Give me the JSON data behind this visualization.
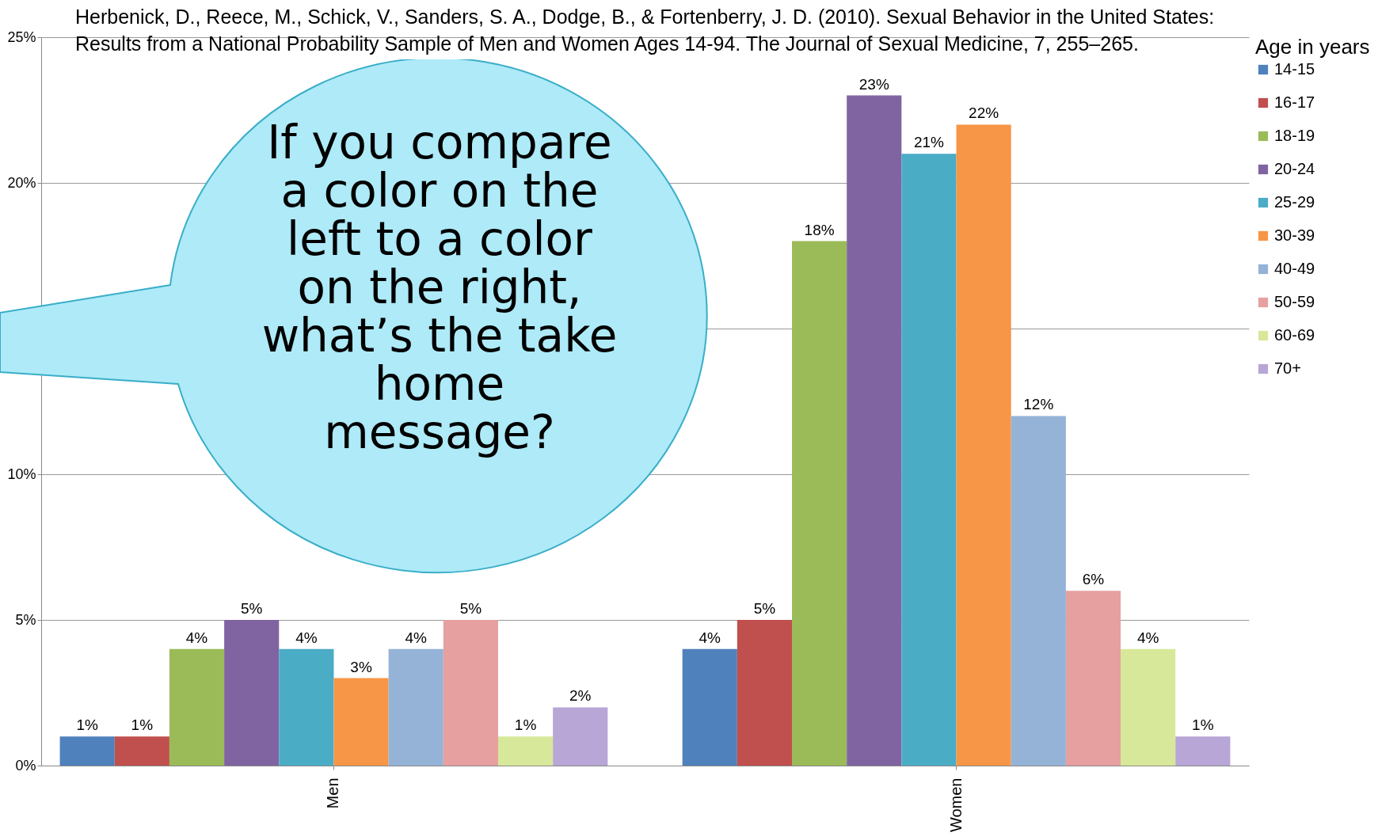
{
  "chart_data": {
    "type": "bar",
    "categories": [
      "Men",
      "Women"
    ],
    "legend_title": "Age in years",
    "legend": "right",
    "grid": "y",
    "ylim": [
      0,
      25
    ],
    "yticks": [
      {
        "value": 0,
        "label": "0%"
      },
      {
        "value": 5,
        "label": "5%"
      },
      {
        "value": 10,
        "label": "10%"
      },
      {
        "value": 15,
        "label": null
      },
      {
        "value": 20,
        "label": "20%"
      },
      {
        "value": 25,
        "label": "25%"
      }
    ],
    "annotations": [
      "Herbenick, D., Reece, M., Schick, V., Sanders, S. A., Dodge, B., & Fortenberry, J. D. (2010). Sexual Behavior in the United States: Results from a National Probability Sample of Men and Women Ages 14-94. The Journal of Sexual Medicine, 7, 255–265.",
      "If you compare a color on the left to a color on the right, what’s the take home message?"
    ],
    "series": [
      {
        "name": "14-15",
        "color": "#4f81bd",
        "values": [
          1,
          4
        ],
        "value_labels": [
          "1%",
          "4%"
        ]
      },
      {
        "name": "16-17",
        "color": "#c0504d",
        "values": [
          1,
          5
        ],
        "value_labels": [
          "1%",
          "5%"
        ]
      },
      {
        "name": "18-19",
        "color": "#9bbb59",
        "values": [
          4,
          18
        ],
        "value_labels": [
          "4%",
          "18%"
        ]
      },
      {
        "name": "20-24",
        "color": "#8064a2",
        "values": [
          5,
          23
        ],
        "value_labels": [
          "5%",
          "23%"
        ]
      },
      {
        "name": "25-29",
        "color": "#4bacc6",
        "values": [
          4,
          21
        ],
        "value_labels": [
          "4%",
          "21%"
        ]
      },
      {
        "name": "30-39",
        "color": "#f79646",
        "values": [
          3,
          22
        ],
        "value_labels": [
          "3%",
          "22%"
        ]
      },
      {
        "name": "40-49",
        "color": "#95b3d7",
        "values": [
          4,
          12
        ],
        "value_labels": [
          "4%",
          "12%"
        ]
      },
      {
        "name": "50-59",
        "color": "#e6a0a0",
        "values": [
          5,
          6
        ],
        "value_labels": [
          "5%",
          "6%"
        ]
      },
      {
        "name": "60-69",
        "color": "#d7e89a",
        "values": [
          1,
          4
        ],
        "value_labels": [
          "1%",
          "4%"
        ]
      },
      {
        "name": "70+",
        "color": "#b8a6d6",
        "values": [
          2,
          1
        ],
        "value_labels": [
          "2%",
          "1%"
        ]
      }
    ]
  }
}
